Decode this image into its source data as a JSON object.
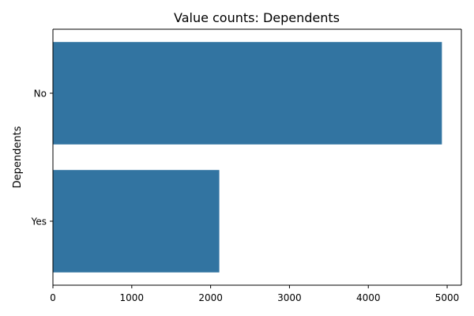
{
  "chart_data": {
    "type": "bar",
    "orientation": "horizontal",
    "title": "Value counts: Dependents",
    "xlabel": "",
    "ylabel": "Dependents",
    "categories": [
      "No",
      "Yes"
    ],
    "values": [
      4933,
      2110
    ],
    "xlim": [
      0,
      5180
    ],
    "xticks": [
      0,
      1000,
      2000,
      3000,
      4000,
      5000
    ],
    "bar_color": "#3274a1",
    "grid": false,
    "legend": "none"
  }
}
